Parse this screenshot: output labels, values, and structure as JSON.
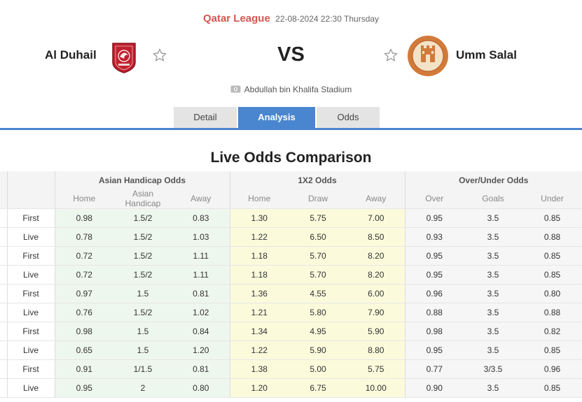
{
  "match": {
    "league": "Qatar League",
    "datetime": "22-08-2024 22:30",
    "weekday": "Thursday",
    "home_team": "Al Duhail",
    "away_team": "Umm Salal",
    "vs": "VS",
    "stadium": "Abdullah bin Khalifa Stadium"
  },
  "tabs": [
    {
      "label": "Detail",
      "active": false
    },
    {
      "label": "Analysis",
      "active": true
    },
    {
      "label": "Odds",
      "active": false
    }
  ],
  "section_title": "Live Odds Comparison",
  "groups": {
    "asian": "Asian Handicap Odds",
    "x12": "1X2 Odds",
    "ou": "Over/Under Odds"
  },
  "columns": {
    "asian": [
      "Home",
      "Asian Handicap",
      "Away"
    ],
    "x12": [
      "Home",
      "Draw",
      "Away"
    ],
    "ou": [
      "Over",
      "Goals",
      "Under"
    ]
  },
  "rows": [
    [
      "First",
      "0.98",
      "1.5/2",
      "0.83",
      "1.30",
      "5.75",
      "7.00",
      "0.95",
      "3.5",
      "0.85"
    ],
    [
      "Live",
      "0.78",
      "1.5/2",
      "1.03",
      "1.22",
      "6.50",
      "8.50",
      "0.93",
      "3.5",
      "0.88"
    ],
    [
      "First",
      "0.72",
      "1.5/2",
      "1.11",
      "1.18",
      "5.70",
      "8.20",
      "0.95",
      "3.5",
      "0.85"
    ],
    [
      "Live",
      "0.72",
      "1.5/2",
      "1.11",
      "1.18",
      "5.70",
      "8.20",
      "0.95",
      "3.5",
      "0.85"
    ],
    [
      "First",
      "0.97",
      "1.5",
      "0.81",
      "1.36",
      "4.55",
      "6.00",
      "0.96",
      "3.5",
      "0.80"
    ],
    [
      "Live",
      "0.76",
      "1.5/2",
      "1.02",
      "1.21",
      "5.80",
      "7.90",
      "0.88",
      "3.5",
      "0.88"
    ],
    [
      "First",
      "0.98",
      "1.5",
      "0.84",
      "1.34",
      "4.95",
      "5.90",
      "0.98",
      "3.5",
      "0.82"
    ],
    [
      "Live",
      "0.65",
      "1.5",
      "1.20",
      "1.22",
      "5.90",
      "8.80",
      "0.95",
      "3.5",
      "0.85"
    ],
    [
      "First",
      "0.91",
      "1/1.5",
      "0.81",
      "1.38",
      "5.00",
      "5.75",
      "0.77",
      "3/3.5",
      "0.96"
    ],
    [
      "Live",
      "0.95",
      "2",
      "0.80",
      "1.20",
      "6.75",
      "10.00",
      "0.90",
      "3.5",
      "0.85"
    ]
  ],
  "colors": {
    "league": "#d9534f",
    "accent": "#4a86cf",
    "home_logo": "#c0202e",
    "away_logo": "#d27a3a"
  }
}
